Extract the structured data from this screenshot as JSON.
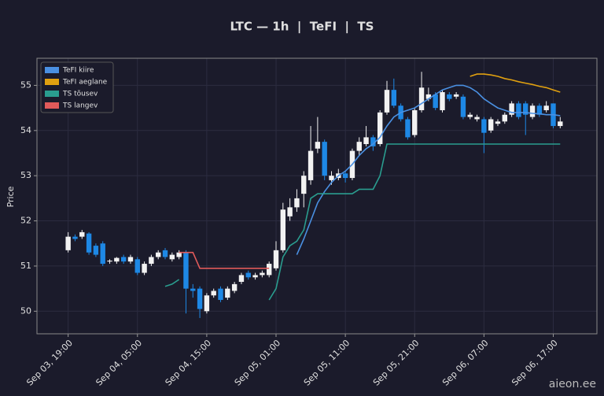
{
  "chart_data": {
    "type": "candlestick",
    "title": "LTC — 1h  |  TeFI  |  TS",
    "y_label": "Price",
    "watermark": "aieon.ee",
    "categories": [
      "Sep 03, 19:00",
      null,
      null,
      null,
      null,
      null,
      null,
      null,
      null,
      null,
      "Sep 04, 05:00",
      null,
      null,
      null,
      null,
      null,
      null,
      null,
      null,
      null,
      "Sep 04, 15:00",
      null,
      null,
      null,
      null,
      null,
      null,
      null,
      null,
      null,
      "Sep 05, 01:00",
      null,
      null,
      null,
      null,
      null,
      null,
      null,
      null,
      null,
      "Sep 05, 11:00",
      null,
      null,
      null,
      null,
      null,
      null,
      null,
      null,
      null,
      "Sep 05, 21:00",
      null,
      null,
      null,
      null,
      null,
      null,
      null,
      null,
      null,
      "Sep 06, 07:00",
      null,
      null,
      null,
      null,
      null,
      null,
      null,
      null,
      null,
      "Sep 06, 17:00",
      null
    ],
    "open": [
      51.35,
      51.65,
      51.65,
      51.72,
      51.45,
      51.5,
      51.1,
      51.1,
      51.2,
      51.1,
      51.15,
      50.85,
      51.05,
      51.2,
      51.35,
      51.15,
      51.2,
      51.3,
      50.5,
      50.5,
      50.0,
      50.35,
      50.5,
      50.3,
      50.45,
      50.65,
      50.85,
      50.75,
      50.8,
      50.8,
      50.95,
      51.35,
      52.1,
      52.3,
      52.6,
      52.9,
      53.6,
      53.75,
      52.9,
      52.95,
      53.05,
      52.95,
      53.55,
      53.7,
      53.85,
      53.7,
      54.4,
      54.9,
      54.55,
      54.25,
      53.9,
      54.45,
      54.7,
      54.8,
      54.45,
      54.8,
      54.75,
      54.75,
      54.3,
      54.25,
      54.25,
      54.0,
      54.15,
      54.2,
      54.35,
      54.6,
      54.6,
      54.3,
      54.55,
      54.45,
      54.6,
      54.1
    ],
    "high": [
      51.75,
      51.7,
      51.8,
      51.75,
      51.5,
      51.55,
      51.15,
      51.2,
      51.25,
      51.25,
      51.2,
      51.1,
      51.25,
      51.35,
      51.4,
      51.3,
      51.35,
      51.35,
      50.6,
      50.55,
      50.4,
      50.5,
      50.55,
      50.55,
      50.65,
      50.85,
      50.9,
      50.85,
      50.9,
      51.1,
      51.55,
      52.4,
      52.5,
      52.7,
      53.1,
      54.1,
      54.3,
      53.8,
      53.1,
      53.15,
      53.1,
      53.6,
      53.85,
      54.1,
      53.9,
      54.45,
      55.1,
      55.15,
      54.6,
      54.3,
      54.5,
      55.3,
      54.95,
      54.85,
      54.9,
      54.85,
      54.85,
      54.8,
      54.4,
      54.35,
      54.3,
      54.3,
      54.25,
      54.4,
      54.65,
      54.65,
      54.65,
      54.6,
      54.6,
      54.65,
      54.6,
      54.3
    ],
    "low": [
      51.3,
      51.55,
      51.6,
      51.25,
      51.2,
      51.0,
      51.05,
      51.05,
      51.05,
      51.05,
      50.8,
      50.8,
      51.0,
      51.15,
      51.15,
      51.1,
      51.15,
      49.95,
      50.3,
      49.85,
      49.95,
      50.3,
      50.2,
      50.25,
      50.4,
      50.6,
      50.7,
      50.7,
      50.75,
      50.75,
      50.9,
      51.3,
      52.0,
      52.2,
      52.3,
      52.8,
      53.5,
      52.9,
      52.8,
      52.9,
      52.85,
      52.9,
      53.45,
      53.65,
      53.55,
      53.65,
      54.35,
      54.5,
      54.2,
      53.8,
      53.85,
      54.4,
      54.65,
      54.45,
      54.4,
      54.65,
      54.7,
      54.25,
      54.25,
      54.2,
      53.5,
      53.95,
      54.1,
      54.15,
      54.3,
      54.25,
      53.9,
      54.25,
      54.3,
      54.4,
      54.05,
      54.05
    ],
    "close": [
      51.65,
      51.6,
      51.75,
      51.3,
      51.25,
      51.05,
      51.12,
      51.18,
      51.1,
      51.2,
      50.85,
      51.05,
      51.2,
      51.3,
      51.2,
      51.25,
      51.3,
      50.5,
      50.45,
      50.05,
      50.35,
      50.45,
      50.25,
      50.5,
      50.6,
      50.8,
      50.75,
      50.8,
      50.85,
      51.05,
      51.35,
      52.25,
      52.3,
      52.5,
      53.0,
      53.55,
      53.75,
      53.0,
      53.0,
      53.05,
      52.95,
      53.55,
      53.75,
      53.85,
      53.65,
      54.4,
      54.9,
      54.55,
      54.25,
      53.85,
      54.45,
      54.95,
      54.8,
      54.5,
      54.85,
      54.7,
      54.8,
      54.3,
      54.35,
      54.3,
      53.95,
      54.25,
      54.2,
      54.35,
      54.6,
      54.3,
      54.35,
      54.55,
      54.35,
      54.55,
      54.1,
      54.2
    ],
    "up_color": "#f2f2f2",
    "down_color": "#1e88e5",
    "lines": [
      {
        "name": "TeFI kiire",
        "color": "#4a90e2",
        "values": [
          null,
          null,
          null,
          null,
          null,
          null,
          null,
          null,
          null,
          null,
          null,
          null,
          null,
          null,
          null,
          null,
          null,
          null,
          null,
          null,
          null,
          null,
          null,
          null,
          null,
          null,
          null,
          null,
          null,
          null,
          null,
          null,
          null,
          51.25,
          51.6,
          52.0,
          52.4,
          52.65,
          52.85,
          53.0,
          53.1,
          53.25,
          53.45,
          53.6,
          53.7,
          53.85,
          54.1,
          54.3,
          54.4,
          54.45,
          54.5,
          54.6,
          54.7,
          54.8,
          54.9,
          54.95,
          55.0,
          55.0,
          54.95,
          54.85,
          54.7,
          54.6,
          54.5,
          54.45,
          54.4,
          54.4,
          54.4,
          54.38,
          54.37,
          54.35,
          54.35,
          54.33
        ]
      },
      {
        "name": "TeFI aeglane",
        "color": "#e0a010",
        "values": [
          null,
          null,
          null,
          null,
          null,
          null,
          null,
          null,
          null,
          null,
          null,
          null,
          null,
          null,
          null,
          null,
          null,
          null,
          null,
          null,
          null,
          null,
          null,
          null,
          null,
          null,
          null,
          null,
          null,
          null,
          null,
          null,
          null,
          null,
          null,
          null,
          null,
          null,
          null,
          null,
          null,
          null,
          null,
          null,
          null,
          null,
          null,
          null,
          null,
          null,
          null,
          null,
          null,
          null,
          null,
          null,
          null,
          null,
          55.2,
          55.25,
          55.25,
          55.23,
          55.2,
          55.15,
          55.12,
          55.08,
          55.05,
          55.02,
          54.98,
          54.95,
          54.9,
          54.85
        ]
      },
      {
        "name": "TS tõusev",
        "color": "#2a9d8f",
        "values": [
          null,
          null,
          null,
          null,
          null,
          null,
          null,
          null,
          null,
          null,
          null,
          null,
          null,
          null,
          50.55,
          50.6,
          50.7,
          null,
          null,
          null,
          null,
          null,
          null,
          null,
          null,
          null,
          null,
          null,
          null,
          50.25,
          50.5,
          51.2,
          51.45,
          51.55,
          51.8,
          52.5,
          52.6,
          52.6,
          52.6,
          52.6,
          52.6,
          52.6,
          52.7,
          52.7,
          52.7,
          53.0,
          53.7,
          53.7,
          53.7,
          53.7,
          53.7,
          53.7,
          53.7,
          53.7,
          53.7,
          53.7,
          53.7,
          53.7,
          53.7,
          53.7,
          53.7,
          53.7,
          53.7,
          53.7,
          53.7,
          53.7,
          53.7,
          53.7,
          53.7,
          53.7,
          53.7,
          53.7
        ]
      },
      {
        "name": "TS langev",
        "color": "#e05a5a",
        "values": [
          null,
          null,
          null,
          null,
          null,
          null,
          null,
          null,
          null,
          null,
          null,
          null,
          null,
          null,
          null,
          null,
          51.3,
          51.3,
          51.3,
          50.95,
          50.95,
          50.95,
          50.95,
          50.95,
          50.95,
          50.95,
          50.95,
          50.95,
          50.95,
          50.95,
          null,
          null,
          null,
          null,
          null,
          null,
          null,
          null,
          null,
          null,
          null,
          null,
          null,
          null,
          null,
          null,
          null,
          null,
          null,
          null,
          null,
          null,
          null,
          null,
          null,
          null,
          null,
          null,
          null,
          null,
          null,
          null,
          null,
          null,
          null,
          null,
          null,
          null,
          null,
          null,
          null,
          null
        ]
      }
    ],
    "ylim": [
      49.5,
      55.6
    ],
    "yticks": [
      50,
      51,
      52,
      53,
      54,
      55
    ],
    "grid": true,
    "legend": "upper left"
  }
}
